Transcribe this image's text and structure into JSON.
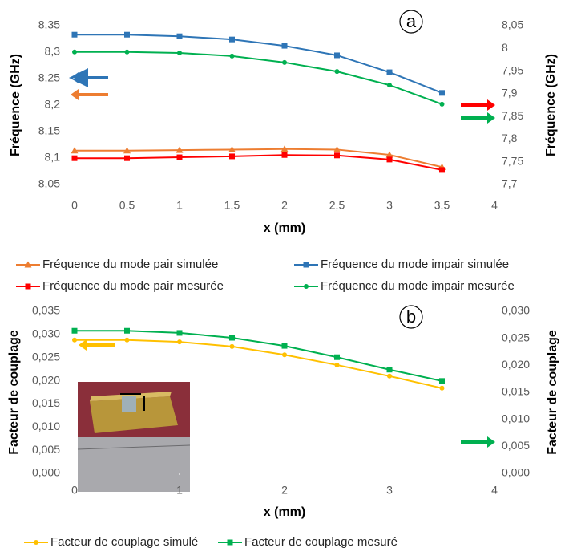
{
  "chart_data": [
    {
      "type": "line",
      "annotation": "a",
      "x_label": "x (mm)",
      "y_label": "Fréquence (GHz)",
      "y2_label": "Fréquence (GHz)",
      "x": [
        0,
        0.5,
        1,
        1.5,
        2,
        2.5,
        3,
        3.5
      ],
      "xlim": [
        0,
        4
      ],
      "xticks": [
        0,
        {
          "value": 0.5,
          "label": "0,5"
        },
        1,
        {
          "value": 1.5,
          "label": "1,5"
        },
        2,
        {
          "value": 2.5,
          "label": "2,5"
        },
        3,
        {
          "value": 3.5,
          "label": "3,5"
        },
        4
      ],
      "ylim": [
        8.05,
        8.35
      ],
      "yticks": [
        {
          "value": 8.05,
          "label": "8,05"
        },
        {
          "value": 8.1,
          "label": "8,1"
        },
        {
          "value": 8.15,
          "label": "8,15"
        },
        {
          "value": 8.2,
          "label": "8,2"
        },
        {
          "value": 8.25,
          "label": "8,25"
        },
        {
          "value": 8.3,
          "label": "8,3"
        },
        {
          "value": 8.35,
          "label": "8,35"
        }
      ],
      "y2lim": [
        7.7,
        8.05
      ],
      "y2ticks": [
        {
          "value": 7.7,
          "label": "7,7"
        },
        {
          "value": 7.75,
          "label": "7,75"
        },
        {
          "value": 7.8,
          "label": "7,8"
        },
        {
          "value": 7.85,
          "label": "7,85"
        },
        {
          "value": 7.9,
          "label": "7,9"
        },
        {
          "value": 7.95,
          "label": "7,95"
        },
        8,
        {
          "value": 8.05,
          "label": "8,05"
        }
      ],
      "series": [
        {
          "name": "Fréquence du mode pair simulée",
          "color": "#ed7d31",
          "marker": "triangle",
          "values": [
            8.114,
            8.114,
            8.115,
            8.116,
            8.117,
            8.116,
            8.106,
            8.083
          ]
        },
        {
          "name": "Fréquence du mode impair simulée",
          "color": "#2e75b6",
          "marker": "square",
          "values": [
            8.333,
            8.333,
            8.33,
            8.324,
            8.312,
            8.294,
            8.262,
            8.223
          ]
        },
        {
          "name": "Fréquence du mode pair mesurée",
          "color": "#ff0000",
          "marker": "square",
          "axis": "y2",
          "values": [
            7.758,
            7.758,
            7.76,
            7.762,
            7.765,
            7.764,
            7.755,
            7.732
          ]
        },
        {
          "name": "Fréquence du mode impair mesurée",
          "color": "#00b050",
          "marker": "circle",
          "axis": "y2",
          "values": [
            7.992,
            7.992,
            7.99,
            7.983,
            7.969,
            7.949,
            7.919,
            7.877
          ]
        }
      ]
    },
    {
      "type": "line",
      "annotation": "b",
      "x_label": "x (mm)",
      "y_label": "Facteur de couplage",
      "y2_label": "Facteur de couplage",
      "x": [
        0,
        0.5,
        1,
        1.5,
        2,
        2.5,
        3,
        3.5
      ],
      "xlim": [
        0,
        4
      ],
      "xticks": [
        0,
        1,
        2,
        3,
        4
      ],
      "ylim": [
        0,
        0.035
      ],
      "yticks": [
        {
          "value": 0,
          "label": "0,000"
        },
        {
          "value": 0.005,
          "label": "0,005"
        },
        {
          "value": 0.01,
          "label": "0,010"
        },
        {
          "value": 0.015,
          "label": "0,015"
        },
        {
          "value": 0.02,
          "label": "0,020"
        },
        {
          "value": 0.025,
          "label": "0,025"
        },
        {
          "value": 0.03,
          "label": "0,030"
        },
        {
          "value": 0.035,
          "label": "0,035"
        }
      ],
      "y2lim": [
        0,
        0.03
      ],
      "y2ticks": [
        {
          "value": 0,
          "label": "0,000"
        },
        {
          "value": 0.005,
          "label": "0,005"
        },
        {
          "value": 0.01,
          "label": "0,010"
        },
        {
          "value": 0.015,
          "label": "0,015"
        },
        {
          "value": 0.02,
          "label": "0,020"
        },
        {
          "value": 0.025,
          "label": "0,025"
        },
        {
          "value": 0.03,
          "label": "0,030"
        }
      ],
      "series": [
        {
          "name": "Facteur de couplage simulé",
          "color": "#ffc000",
          "marker": "circle",
          "values": [
            0.0288,
            0.0288,
            0.0284,
            0.0274,
            0.0256,
            0.0234,
            0.021,
            0.0184
          ]
        },
        {
          "name": "Facteur de couplage mesuré",
          "color": "#00b050",
          "marker": "square",
          "axis": "y2",
          "values": [
            0.0264,
            0.0264,
            0.026,
            0.0251,
            0.0236,
            0.0215,
            0.0192,
            0.0171
          ]
        }
      ]
    }
  ]
}
